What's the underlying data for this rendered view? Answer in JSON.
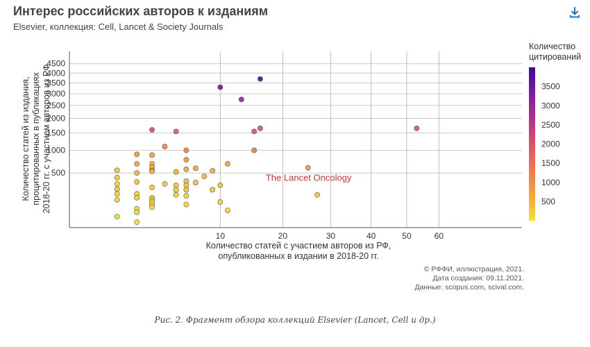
{
  "header": {
    "title": "Интерес российских авторов к изданиям",
    "subtitle": "Elsevier, коллекция: Cell, Lancet & Society Journals"
  },
  "toolbar": {
    "download_icon": "download-icon"
  },
  "credits": {
    "line1": "© РФФИ, иллюстрация, 2021.",
    "line2": "Дата создания: 09.11.2021.",
    "line3": "Данные: scopus.com, scival.com."
  },
  "caption": "Рис. 2. Фрагмент обзора коллекций Elsevier (Lancet, Cell и др.)",
  "chart_data": {
    "type": "scatter",
    "title": "Интерес российских авторов к изданиям",
    "subtitle": "Elsevier, коллекция: Cell, Lancet & Society Journals",
    "xlabel_lines": [
      "Количество статей с участием авторов из РФ,",
      "опубликованных в издании в 2018-20 гг."
    ],
    "ylabel_lines": [
      "Количество статей из издания,",
      "процитированных в публикациях",
      "2018-20 гг. с участием авторов из РФ"
    ],
    "x_scale": "sqrt",
    "y_scale": "sqrt",
    "x_ticks": [
      10,
      20,
      30,
      40,
      50,
      60
    ],
    "y_ticks": [
      500,
      1000,
      1500,
      2000,
      2500,
      3000,
      3500,
      4000,
      4500
    ],
    "xlim": [
      0,
      90
    ],
    "ylim": [
      0,
      4800
    ],
    "grid": true,
    "legend": {
      "title_lines": [
        "Количество",
        "цитирований"
      ],
      "ticks": [
        500,
        1000,
        1500,
        2000,
        2500,
        3000,
        3500
      ],
      "range": [
        0,
        4000
      ],
      "colors": [
        "#f1e13a",
        "#f4a33a",
        "#ec7a55",
        "#d6566d",
        "#b0318b",
        "#7c1aa3",
        "#3d0f8f"
      ],
      "placement": "right"
    },
    "annotation": {
      "label": "The Lancet Oncology",
      "x": 25,
      "y": 600,
      "color": "#b03a2e"
    },
    "points": [
      {
        "x": 1,
        "y": 550
      },
      {
        "x": 1,
        "y": 420
      },
      {
        "x": 1,
        "y": 320
      },
      {
        "x": 1,
        "y": 250
      },
      {
        "x": 1,
        "y": 190
      },
      {
        "x": 1,
        "y": 130
      },
      {
        "x": 1,
        "y": 20
      },
      {
        "x": 2,
        "y": 900
      },
      {
        "x": 2,
        "y": 680
      },
      {
        "x": 2,
        "y": 500
      },
      {
        "x": 2,
        "y": 350
      },
      {
        "x": 2,
        "y": 190
      },
      {
        "x": 2,
        "y": 150
      },
      {
        "x": 2,
        "y": 60
      },
      {
        "x": 2,
        "y": 40
      },
      {
        "x": 2,
        "y": 5
      },
      {
        "x": 3,
        "y": 1600
      },
      {
        "x": 3,
        "y": 880
      },
      {
        "x": 3,
        "y": 680
      },
      {
        "x": 3,
        "y": 610
      },
      {
        "x": 3,
        "y": 550
      },
      {
        "x": 3,
        "y": 530
      },
      {
        "x": 3,
        "y": 270
      },
      {
        "x": 3,
        "y": 150
      },
      {
        "x": 3,
        "y": 130
      },
      {
        "x": 3,
        "y": 110
      },
      {
        "x": 3,
        "y": 90
      },
      {
        "x": 3,
        "y": 70
      },
      {
        "x": 4,
        "y": 1100
      },
      {
        "x": 4,
        "y": 320
      },
      {
        "x": 5,
        "y": 1550
      },
      {
        "x": 5,
        "y": 520
      },
      {
        "x": 5,
        "y": 300
      },
      {
        "x": 5,
        "y": 240
      },
      {
        "x": 5,
        "y": 180
      },
      {
        "x": 6,
        "y": 1000
      },
      {
        "x": 6,
        "y": 770
      },
      {
        "x": 6,
        "y": 570
      },
      {
        "x": 6,
        "y": 360
      },
      {
        "x": 6,
        "y": 300
      },
      {
        "x": 6,
        "y": 240
      },
      {
        "x": 6,
        "y": 170
      },
      {
        "x": 6,
        "y": 90
      },
      {
        "x": 7,
        "y": 590
      },
      {
        "x": 7,
        "y": 340
      },
      {
        "x": 8,
        "y": 440
      },
      {
        "x": 9,
        "y": 540
      },
      {
        "x": 9,
        "y": 240
      },
      {
        "x": 10,
        "y": 3300
      },
      {
        "x": 10,
        "y": 300
      },
      {
        "x": 10,
        "y": 110
      },
      {
        "x": 11,
        "y": 680
      },
      {
        "x": 11,
        "y": 50
      },
      {
        "x": 13,
        "y": 2750
      },
      {
        "x": 15,
        "y": 1550
      },
      {
        "x": 15,
        "y": 1000
      },
      {
        "x": 16,
        "y": 3700
      },
      {
        "x": 16,
        "y": 1650
      },
      {
        "x": 25,
        "y": 600
      },
      {
        "x": 27,
        "y": 180
      },
      {
        "x": 53,
        "y": 1650
      }
    ],
    "point_citations": [
      300,
      250,
      200,
      180,
      150,
      120,
      60,
      800,
      650,
      500,
      350,
      200,
      180,
      90,
      70,
      40,
      2100,
      750,
      600,
      560,
      520,
      500,
      260,
      170,
      150,
      130,
      110,
      90,
      1200,
      300,
      1900,
      500,
      300,
      260,
      210,
      1100,
      800,
      600,
      380,
      320,
      270,
      200,
      130,
      620,
      360,
      460,
      560,
      260,
      3400,
      320,
      150,
      700,
      100,
      3000,
      2000,
      1300,
      3800,
      2000,
      850,
      300,
      2000
    ]
  }
}
